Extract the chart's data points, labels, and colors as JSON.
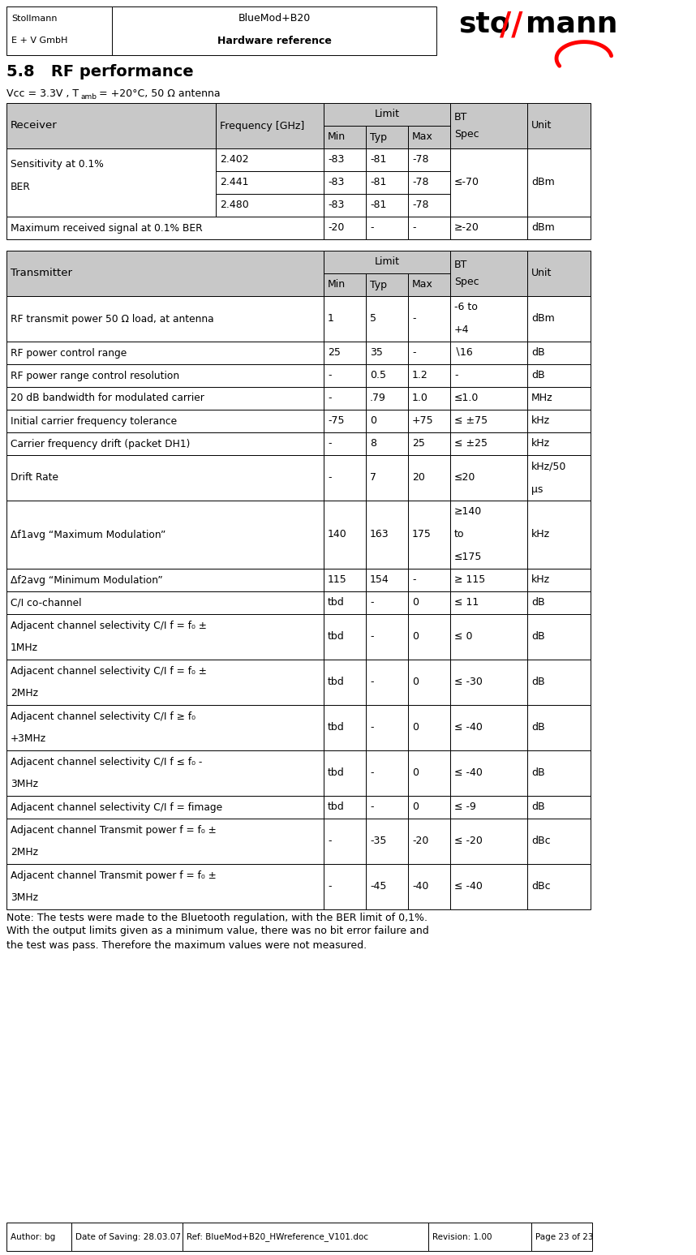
{
  "gray": "#c8c8c8",
  "white": "#ffffff",
  "header_company": "Stollmann",
  "header_division": "E + V GmbH",
  "header_product": "BlueMod+B20",
  "header_doc": "Hardware reference",
  "section_title": "5.8   RF performance",
  "footer_author": "Author: bg",
  "footer_date": "Date of Saving: 28.03.07",
  "footer_ref": "Ref: BlueMod+B20_HWreference_V101.doc",
  "footer_revision": "Revision: 1.00",
  "footer_page": "Page 23 of 23",
  "note_lines": [
    "Note: The tests were made to the Bluetooth regulation, with the BER limit of 0,1%.",
    "With the output limits given as a minimum value, there was no bit error failure and",
    "the test was pass. Therefore the maximum values were not measured."
  ],
  "rx_sens_rows": [
    [
      "2.402",
      "-83",
      "-81",
      "-78"
    ],
    [
      "2.441",
      "-83",
      "-81",
      "-78"
    ],
    [
      "2.480",
      "-83",
      "-81",
      "-78"
    ]
  ],
  "tx_rows": [
    [
      "RF transmit power 50 Ω load, at antenna",
      "1",
      "5",
      "-",
      "-6 to\n+4",
      "dBm",
      2
    ],
    [
      "RF power control range",
      "25",
      "35",
      "-",
      "∖16",
      "dB",
      1
    ],
    [
      "RF power range control resolution",
      "-",
      "0.5",
      "1.2",
      "-",
      "dB",
      1
    ],
    [
      "20 dB bandwidth for modulated carrier",
      "-",
      ".79",
      "1.0",
      "≤1.0",
      "MHz",
      1
    ],
    [
      "Initial carrier frequency tolerance",
      "-75",
      "0",
      "+75",
      "≤ ±75",
      "kHz",
      1
    ],
    [
      "Carrier frequency drift (packet DH1)",
      "-",
      "8",
      "25",
      "≤ ±25",
      "kHz",
      1
    ],
    [
      "Drift Rate",
      "-",
      "7",
      "20",
      "≤20",
      "kHz/50\nμs",
      2
    ],
    [
      "Δf1avg “Maximum Modulation”",
      "140",
      "163",
      "175",
      "≥140\nto\n≤175",
      "kHz",
      3
    ],
    [
      "Δf2avg “Minimum Modulation”",
      "115",
      "154",
      "-",
      "≥ 115",
      "kHz",
      1
    ],
    [
      "C/I co-channel",
      "tbd",
      "-",
      "0",
      "≤ 11",
      "dB",
      1
    ],
    [
      "Adjacent channel selectivity C/I f = f₀ ±\n1MHz",
      "tbd",
      "-",
      "0",
      "≤ 0",
      "dB",
      2
    ],
    [
      "Adjacent channel selectivity C/I f = f₀ ±\n2MHz",
      "tbd",
      "-",
      "0",
      "≤ -30",
      "dB",
      2
    ],
    [
      "Adjacent channel selectivity C/I f ≥ f₀\n+3MHz",
      "tbd",
      "-",
      "0",
      "≤ -40",
      "dB",
      2
    ],
    [
      "Adjacent channel selectivity C/I f ≤ f₀ -\n3MHz",
      "tbd",
      "-",
      "0",
      "≤ -40",
      "dB",
      2
    ],
    [
      "Adjacent channel selectivity C/I f = fimage",
      "tbd",
      "-",
      "0",
      "≤ -9",
      "dB",
      1
    ],
    [
      "Adjacent channel Transmit power f = f₀ ±\n2MHz",
      "-",
      "-35",
      "-20",
      "≤ -20",
      "dBc",
      2
    ],
    [
      "Adjacent channel Transmit power f = f₀ ±\n3MHz",
      "-",
      "-45",
      "-40",
      "≤ -40",
      "dBc",
      2
    ]
  ]
}
